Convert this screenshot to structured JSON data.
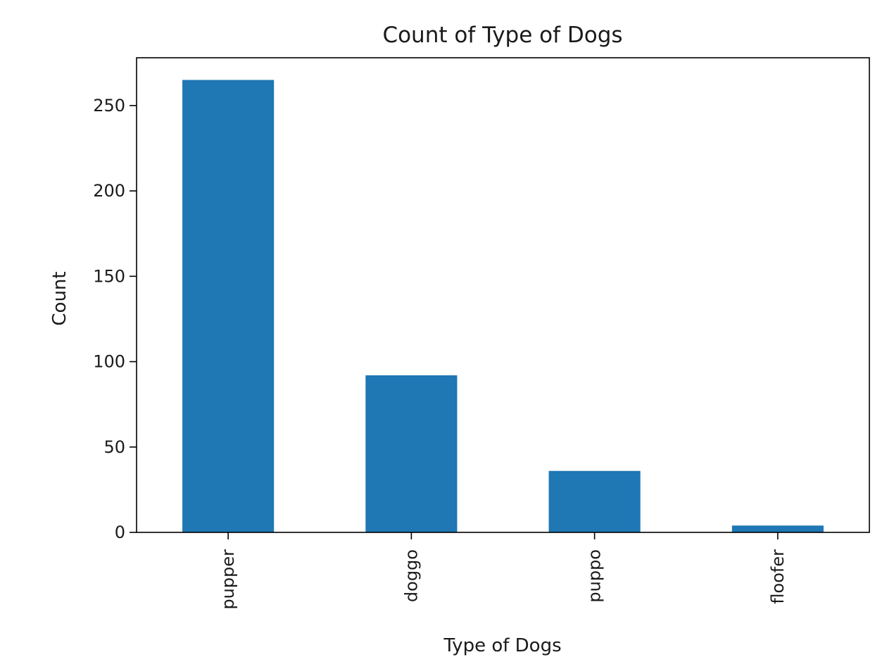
{
  "chart_data": {
    "type": "bar",
    "title": "Count of Type of Dogs",
    "xlabel": "Type of Dogs",
    "ylabel": "Count",
    "categories": [
      "pupper",
      "doggo",
      "puppo",
      "floofer"
    ],
    "values": [
      265,
      92,
      36,
      4
    ],
    "ylim": [
      0,
      278
    ],
    "yticks": [
      0,
      50,
      100,
      150,
      200,
      250
    ],
    "grid": false,
    "legend": "none",
    "bar_color": "#1f77b4",
    "x_tick_rotation": "vertical"
  }
}
